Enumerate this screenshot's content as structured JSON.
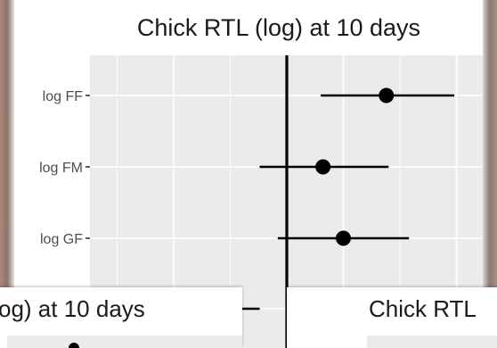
{
  "chart_data": [
    {
      "type": "forest",
      "title": "Chick RTL (log) at 10 days",
      "xlabel": "",
      "ylabel": "",
      "xlim": [
        -1.0,
        1.0
      ],
      "reference_line": 0,
      "grid": true,
      "categories": [
        "log FF",
        "log FM",
        "log GF",
        ""
      ],
      "estimates": [
        0.44,
        0.16,
        0.25,
        null
      ],
      "ci_low": [
        0.15,
        -0.12,
        -0.04,
        null
      ],
      "ci_high": [
        0.74,
        0.45,
        0.54,
        -0.12
      ]
    },
    {
      "type": "forest",
      "title": "og) at 10 days"
    },
    {
      "type": "forest",
      "title": "Chick RTL"
    }
  ],
  "colors": {
    "panel_background": "#ebebeb",
    "grid_major": "#ffffff",
    "mark": "#000000",
    "tick_label": "#4d4d4d"
  }
}
